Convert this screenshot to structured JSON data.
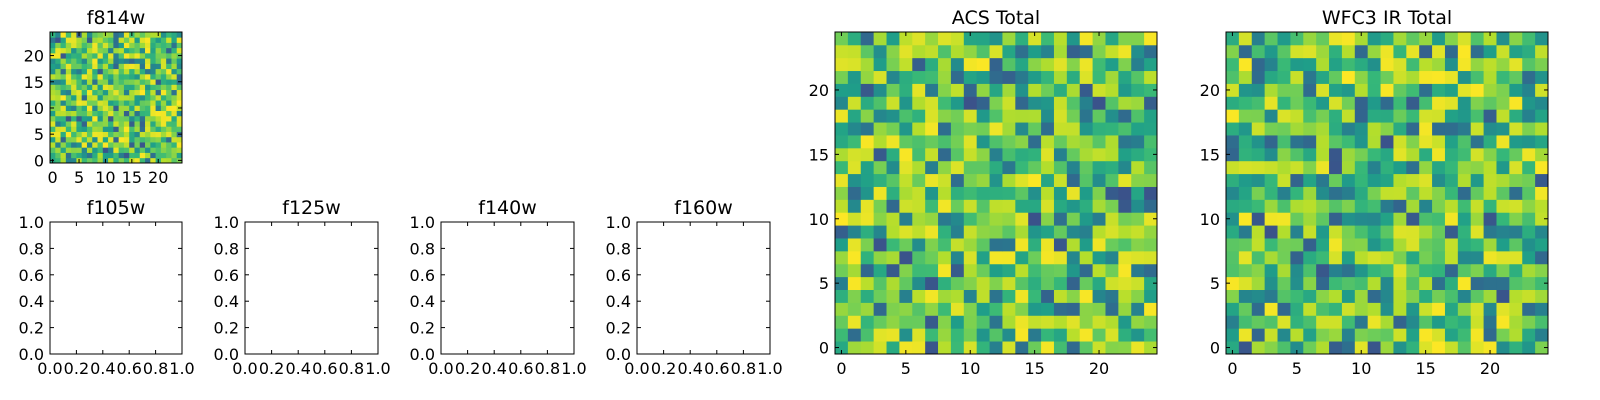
{
  "chart_data": [
    {
      "type": "heatmap",
      "title": "f814w",
      "xticks": [
        "0",
        "5",
        "10",
        "15",
        "20"
      ],
      "yticks": [
        "0",
        "5",
        "10",
        "15",
        "20"
      ],
      "xlim": [
        -0.5,
        24.5
      ],
      "ylim": [
        -0.5,
        24.5
      ],
      "grid_size": 25,
      "colormap": "viridis",
      "seed": 11
    },
    {
      "type": "empty",
      "title": "f105w",
      "xticks": [
        "0.0",
        "0.2",
        "0.4",
        "0.6",
        "0.8",
        "1.0"
      ],
      "yticks": [
        "0.0",
        "0.2",
        "0.4",
        "0.6",
        "0.8",
        "1.0"
      ],
      "xlim": [
        0,
        1
      ],
      "ylim": [
        0,
        1
      ]
    },
    {
      "type": "empty",
      "title": "f125w",
      "xticks": [
        "0.0",
        "0.2",
        "0.4",
        "0.6",
        "0.8",
        "1.0"
      ],
      "yticks": [
        "0.0",
        "0.2",
        "0.4",
        "0.6",
        "0.8",
        "1.0"
      ],
      "xlim": [
        0,
        1
      ],
      "ylim": [
        0,
        1
      ]
    },
    {
      "type": "empty",
      "title": "f140w",
      "xticks": [
        "0.0",
        "0.2",
        "0.4",
        "0.6",
        "0.8",
        "1.0"
      ],
      "yticks": [
        "0.0",
        "0.2",
        "0.4",
        "0.6",
        "0.8",
        "1.0"
      ],
      "xlim": [
        0,
        1
      ],
      "ylim": [
        0,
        1
      ]
    },
    {
      "type": "empty",
      "title": "f160w",
      "xticks": [
        "0.0",
        "0.2",
        "0.4",
        "0.6",
        "0.8",
        "1.0"
      ],
      "yticks": [
        "0.0",
        "0.2",
        "0.4",
        "0.6",
        "0.8",
        "1.0"
      ],
      "xlim": [
        0,
        1
      ],
      "ylim": [
        0,
        1
      ]
    },
    {
      "type": "heatmap",
      "title": "ACS Total",
      "xticks": [
        "0",
        "5",
        "10",
        "15",
        "20"
      ],
      "yticks": [
        "0",
        "5",
        "10",
        "15",
        "20"
      ],
      "xlim": [
        -0.5,
        24.5
      ],
      "ylim": [
        -0.5,
        24.5
      ],
      "grid_size": 25,
      "colormap": "viridis",
      "seed": 29
    },
    {
      "type": "heatmap",
      "title": "WFC3 IR Total",
      "xticks": [
        "0",
        "5",
        "10",
        "15",
        "20"
      ],
      "yticks": [
        "0",
        "5",
        "10",
        "15",
        "20"
      ],
      "xlim": [
        -0.5,
        24.5
      ],
      "ylim": [
        -0.5,
        24.5
      ],
      "grid_size": 25,
      "colormap": "viridis",
      "seed": 47
    }
  ]
}
